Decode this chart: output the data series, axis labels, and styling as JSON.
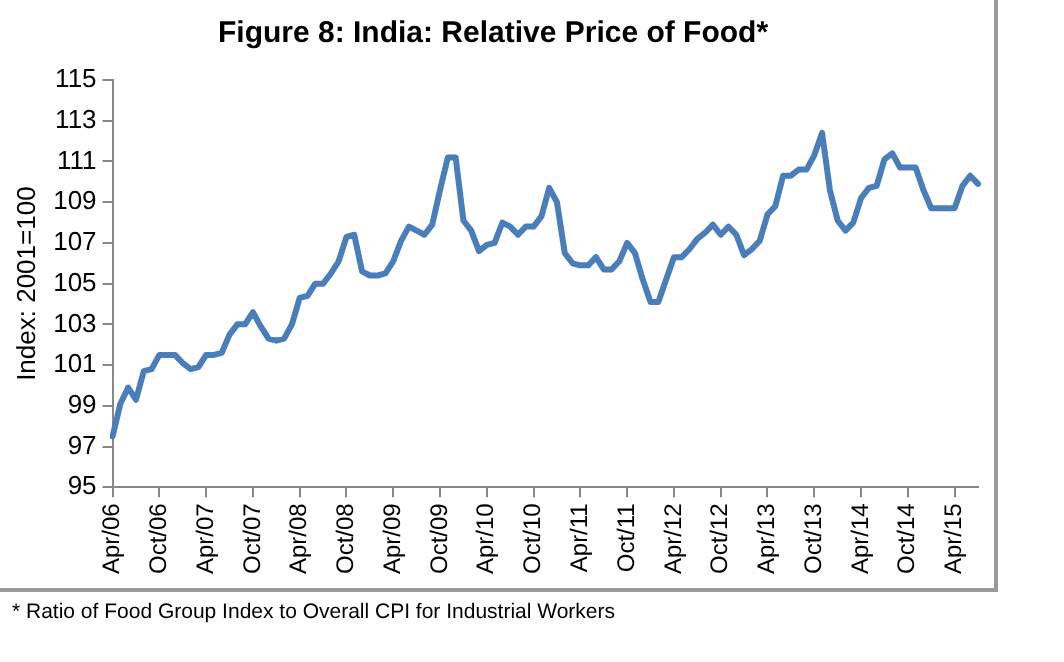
{
  "chart_data": {
    "type": "line",
    "title": "Figure 8: India: Relative Price of Food*",
    "ylabel": "Index: 2001=100",
    "annotations": [
      "* Ratio of Food Group Index to Overall CPI for Industrial Workers"
    ],
    "categories": [
      "Apr/06",
      null,
      null,
      null,
      null,
      null,
      "Oct/06",
      null,
      null,
      null,
      null,
      null,
      "Apr/07",
      null,
      null,
      null,
      null,
      null,
      "Oct/07",
      null,
      null,
      null,
      null,
      null,
      "Apr/08",
      null,
      null,
      null,
      null,
      null,
      "Oct/08",
      null,
      null,
      null,
      null,
      null,
      "Apr/09",
      null,
      null,
      null,
      null,
      null,
      "Oct/09",
      null,
      null,
      null,
      null,
      null,
      "Apr/10",
      null,
      null,
      null,
      null,
      null,
      "Oct/10",
      null,
      null,
      null,
      null,
      null,
      "Apr/11",
      null,
      null,
      null,
      null,
      null,
      "Oct/11",
      null,
      null,
      null,
      null,
      null,
      "Apr/12",
      null,
      null,
      null,
      null,
      null,
      "Oct/12",
      null,
      null,
      null,
      null,
      null,
      "Apr/13",
      null,
      null,
      null,
      null,
      null,
      "Oct/13",
      null,
      null,
      null,
      null,
      null,
      "Apr/14",
      null,
      null,
      null,
      null,
      null,
      "Oct/14",
      null,
      null,
      null,
      null,
      null,
      "Apr/15",
      null,
      null,
      null
    ],
    "series": [
      {
        "color": "#4a7ebb",
        "values": [
          97.5,
          99.1,
          99.9,
          99.3,
          100.7,
          100.8,
          101.5,
          101.5,
          101.5,
          101.1,
          100.8,
          100.9,
          101.5,
          101.5,
          101.6,
          102.5,
          103.0,
          103.0,
          103.6,
          102.9,
          102.3,
          102.2,
          102.3,
          103.0,
          104.3,
          104.4,
          105.0,
          105.0,
          105.5,
          106.1,
          107.3,
          107.4,
          105.6,
          105.4,
          105.4,
          105.5,
          106.1,
          107.1,
          107.8,
          107.6,
          107.4,
          107.9,
          109.6,
          111.2,
          111.2,
          108.1,
          107.6,
          106.6,
          106.9,
          107.0,
          108.0,
          107.8,
          107.4,
          107.8,
          107.8,
          108.3,
          109.7,
          109.0,
          106.5,
          106.0,
          105.9,
          105.9,
          106.3,
          105.7,
          105.7,
          106.1,
          107.0,
          106.5,
          105.2,
          104.1,
          104.1,
          105.2,
          106.3,
          106.3,
          106.7,
          107.2,
          107.5,
          107.9,
          107.4,
          107.8,
          107.4,
          106.4,
          106.7,
          107.1,
          108.4,
          108.8,
          110.3,
          110.3,
          110.6,
          110.6,
          111.3,
          112.4,
          109.6,
          108.1,
          107.6,
          108.0,
          109.2,
          109.7,
          109.8,
          111.1,
          111.4,
          110.7,
          110.7,
          110.7,
          109.6,
          108.7,
          108.7,
          108.7,
          108.7,
          109.8,
          110.3,
          109.9
        ]
      }
    ],
    "ylim": [
      95,
      115
    ],
    "yticks": [
      95,
      97,
      99,
      101,
      103,
      105,
      107,
      109,
      111,
      113,
      115
    ],
    "grid": false,
    "legend": false,
    "line_style": "solid",
    "marker": "none"
  }
}
